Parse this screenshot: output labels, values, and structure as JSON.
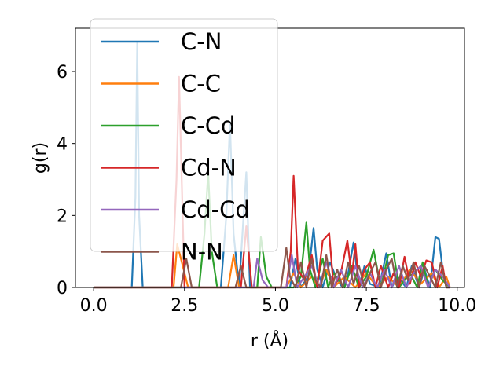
{
  "chart_data": {
    "type": "line",
    "title": "",
    "xlabel": "r (Å)",
    "ylabel": "g(r)",
    "xlim": [
      -0.5,
      10.2
    ],
    "ylim": [
      0,
      7.2
    ],
    "xticks": [
      0.0,
      2.5,
      5.0,
      7.5,
      10.0
    ],
    "xtick_labels": [
      "0.0",
      "2.5",
      "5.0",
      "7.5",
      "10.0"
    ],
    "yticks": [
      0,
      2,
      4,
      6
    ],
    "ytick_labels": [
      "0",
      "2",
      "4",
      "6"
    ],
    "grid": false,
    "legend_position": "upper-left",
    "series": [
      {
        "name": "C-N",
        "color": "#1f77b4",
        "x": [
          0.0,
          1.05,
          1.15,
          1.2,
          1.25,
          1.35,
          3.5,
          3.65,
          3.75,
          3.85,
          4.0,
          4.1,
          4.2,
          4.3,
          5.4,
          5.55,
          5.7,
          5.9,
          6.05,
          6.15,
          6.3,
          6.5,
          6.7,
          6.85,
          7.0,
          7.15,
          7.3,
          7.45,
          7.6,
          7.85,
          8.05,
          8.2,
          8.35,
          8.6,
          8.75,
          8.95,
          9.1,
          9.25,
          9.4,
          9.5,
          9.6,
          9.7,
          9.8
        ],
        "y": [
          0.0,
          0.0,
          2.5,
          6.8,
          2.0,
          0.0,
          0.0,
          2.0,
          4.6,
          1.5,
          0.0,
          1.6,
          3.2,
          0.0,
          0.0,
          0.8,
          0.0,
          0.3,
          1.65,
          0.5,
          0.0,
          0.7,
          0.2,
          0.0,
          0.4,
          1.25,
          0.0,
          0.6,
          0.1,
          0.0,
          0.95,
          0.0,
          0.3,
          0.0,
          0.6,
          0.0,
          0.5,
          0.0,
          1.4,
          1.35,
          0.5,
          0.0,
          0.0
        ]
      },
      {
        "name": "C-C",
        "color": "#ff7f0e",
        "x": [
          0.0,
          2.2,
          2.3,
          2.45,
          2.6,
          3.7,
          3.85,
          4.0,
          5.3,
          5.5,
          5.7,
          6.0,
          6.2,
          6.4,
          6.6,
          6.9,
          7.2,
          7.5,
          7.8,
          8.1,
          8.4,
          8.7,
          9.0,
          9.3,
          9.5,
          9.7,
          9.8
        ],
        "y": [
          0.0,
          0.0,
          1.2,
          0.6,
          0.0,
          0.0,
          0.9,
          0.0,
          0.0,
          0.4,
          0.0,
          0.3,
          0.0,
          0.5,
          0.0,
          0.3,
          0.0,
          0.4,
          0.0,
          0.3,
          0.0,
          0.5,
          0.1,
          0.4,
          0.0,
          0.3,
          0.0
        ]
      },
      {
        "name": "C-Cd",
        "color": "#2ca02c",
        "x": [
          0.0,
          2.9,
          3.05,
          3.15,
          3.25,
          3.4,
          4.5,
          4.6,
          4.75,
          4.9,
          5.5,
          5.7,
          5.85,
          5.95,
          6.1,
          6.3,
          6.45,
          6.6,
          6.9,
          7.1,
          7.3,
          7.5,
          7.7,
          7.9,
          8.1,
          8.25,
          8.4,
          8.7,
          8.9,
          9.05,
          9.2,
          9.4,
          9.6,
          9.8
        ],
        "y": [
          0.0,
          0.0,
          1.5,
          3.2,
          1.0,
          0.0,
          0.0,
          1.4,
          0.3,
          0.0,
          0.0,
          0.3,
          1.8,
          0.5,
          0.0,
          0.8,
          0.0,
          0.4,
          0.0,
          0.6,
          0.0,
          0.3,
          1.05,
          0.0,
          0.9,
          0.95,
          0.0,
          0.4,
          0.0,
          0.7,
          0.0,
          0.5,
          0.2,
          0.0
        ]
      },
      {
        "name": "Cd-N",
        "color": "#d62728",
        "x": [
          0.0,
          2.15,
          2.28,
          2.35,
          2.5,
          4.05,
          4.2,
          4.35,
          5.3,
          5.42,
          5.5,
          5.62,
          5.8,
          6.0,
          6.15,
          6.3,
          6.48,
          6.6,
          6.8,
          6.98,
          7.1,
          7.2,
          7.3,
          7.45,
          7.6,
          7.75,
          7.9,
          8.1,
          8.25,
          8.4,
          8.55,
          8.7,
          8.85,
          9.0,
          9.15,
          9.3,
          9.45,
          9.6,
          9.7,
          9.8
        ],
        "y": [
          0.0,
          0.0,
          3.0,
          5.85,
          0.0,
          0.0,
          1.7,
          0.0,
          0.0,
          1.0,
          3.1,
          0.5,
          0.2,
          0.9,
          0.0,
          1.3,
          1.5,
          0.0,
          0.4,
          1.3,
          0.3,
          1.2,
          0.0,
          0.5,
          0.7,
          0.0,
          0.6,
          0.0,
          0.4,
          0.0,
          0.85,
          0.1,
          0.7,
          0.3,
          0.75,
          0.7,
          0.0,
          0.6,
          0.0,
          0.0
        ]
      },
      {
        "name": "Cd-Cd",
        "color": "#9467bd",
        "x": [
          0.0,
          4.4,
          4.5,
          4.65,
          4.8,
          5.3,
          5.45,
          5.6,
          5.8,
          6.0,
          6.2,
          6.4,
          6.6,
          6.8,
          7.0,
          7.2,
          7.4,
          7.6,
          7.8,
          8.0,
          8.2,
          8.4,
          8.6,
          8.8,
          9.0,
          9.2,
          9.4,
          9.6,
          9.8
        ],
        "y": [
          0.0,
          0.0,
          0.8,
          0.2,
          0.0,
          0.0,
          0.9,
          0.0,
          0.3,
          0.6,
          0.0,
          0.7,
          0.0,
          0.5,
          0.0,
          0.6,
          0.0,
          0.4,
          0.0,
          0.5,
          0.0,
          0.6,
          0.0,
          0.4,
          0.6,
          0.0,
          0.5,
          0.3,
          0.0
        ]
      },
      {
        "name": "N-N",
        "color": "#8c564b",
        "x": [
          0.0,
          2.4,
          2.55,
          2.7,
          3.9,
          4.05,
          4.2,
          5.15,
          5.3,
          5.4,
          5.55,
          5.7,
          5.85,
          6.0,
          6.1,
          6.25,
          6.4,
          6.55,
          6.7,
          6.85,
          7.0,
          7.15,
          7.3,
          7.45,
          7.6,
          7.75,
          7.9,
          8.05,
          8.2,
          8.35,
          8.5,
          8.65,
          8.8,
          8.95,
          9.1,
          9.25,
          9.4,
          9.55,
          9.7,
          9.8
        ],
        "y": [
          0.0,
          0.0,
          0.8,
          0.0,
          0.0,
          0.6,
          0.0,
          0.0,
          1.1,
          0.3,
          0.0,
          0.7,
          0.0,
          0.8,
          0.2,
          0.0,
          0.9,
          0.0,
          0.5,
          0.0,
          0.7,
          0.1,
          0.6,
          0.0,
          0.4,
          0.7,
          0.0,
          0.5,
          0.8,
          0.0,
          0.6,
          0.2,
          0.7,
          0.0,
          0.6,
          0.3,
          0.0,
          0.7,
          0.0,
          0.0
        ]
      }
    ]
  }
}
